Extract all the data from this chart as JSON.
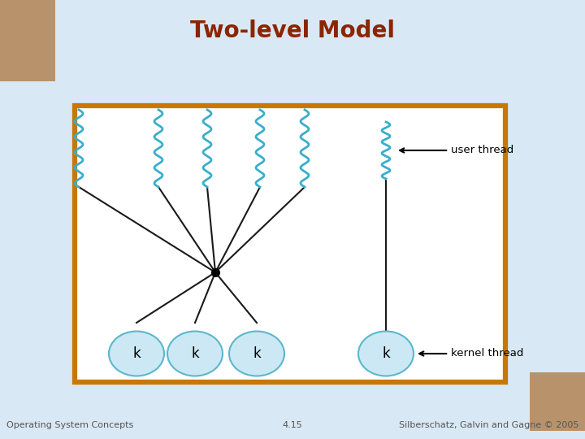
{
  "title": "Two-level Model",
  "title_color": "#8B2500",
  "title_fontsize": 20,
  "bg_color": "#d8e8f4",
  "box_color": "#c87800",
  "box_bg": "#ffffff",
  "thread_color": "#3aaecc",
  "line_color": "#1a1a1a",
  "kernel_fill": "#cce8f4",
  "kernel_edge": "#5ab8cc",
  "label_color": "#000000",
  "footer_color": "#555555",
  "footer_fontsize": 8,
  "label_user_thread": "user thread",
  "label_kernel_thread": "kernel thread",
  "footer_left": "Operating System Concepts",
  "footer_center": "4.15",
  "footer_right": "Silberschatz, Galvin and Gagne © 2005"
}
